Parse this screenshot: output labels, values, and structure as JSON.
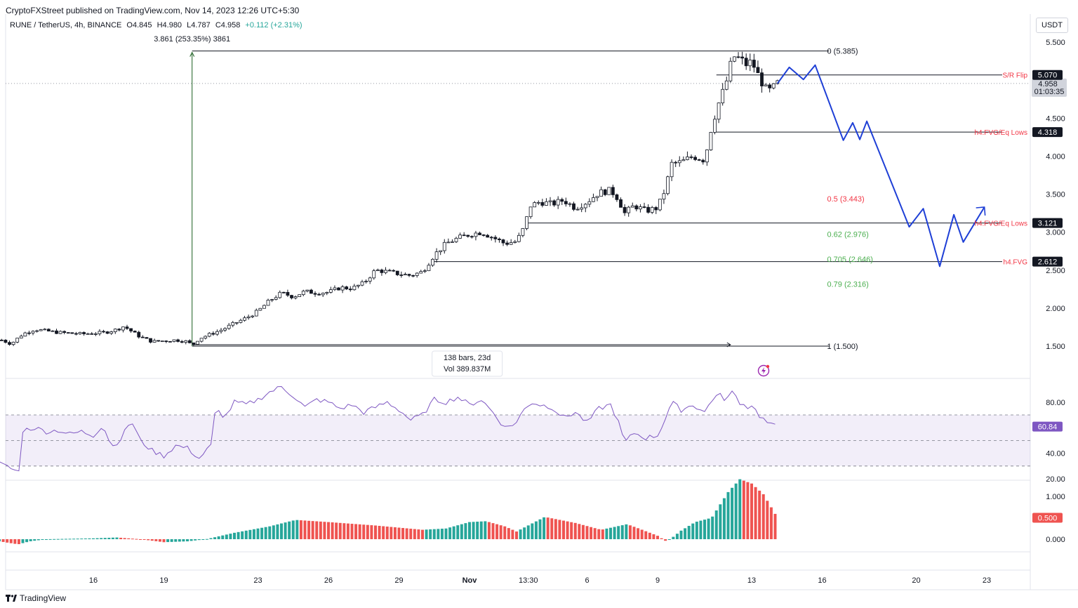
{
  "header": {
    "published": "CryptoFXStreet published on TradingView.com, Nov 14, 2023 12:26 UTC+5:30",
    "pair": "RUNE / TetherUS, 4h, BINANCE",
    "open": "O4.845",
    "high": "H4.980",
    "low": "L4.787",
    "close": "C4.958",
    "change": "+0.112 (+2.31%)"
  },
  "currency": "USDT",
  "footer": {
    "brand": "TradingView"
  },
  "colors": {
    "up": "#26a69a",
    "down": "#ef5350",
    "rsi": "#7e57c2",
    "projection": "#1e3fd6",
    "fib_red": "#f23645",
    "fib_green": "#4caf50",
    "measure": "#1b5e20"
  },
  "measure": {
    "top_label": "3.861 (253.35%) 3861",
    "bars_label": "138 bars, 23d",
    "vol_label": "Vol 389.837M"
  },
  "fib_levels": [
    {
      "label": "0 (5.385)",
      "price": 5.385,
      "color": "#131722"
    },
    {
      "label": "0.5 (3.443)",
      "price": 3.443,
      "color": "#f23645"
    },
    {
      "label": "0.62 (2.976)",
      "price": 2.976,
      "color": "#4caf50"
    },
    {
      "label": "0.705 (2.646)",
      "price": 2.646,
      "color": "#4caf50"
    },
    {
      "label": "0.79 (2.316)",
      "price": 2.316,
      "color": "#4caf50"
    },
    {
      "label": "1 (1.500)",
      "price": 1.5,
      "color": "#131722"
    }
  ],
  "levels": [
    {
      "label": "S/R Flip",
      "price": 5.07,
      "tag": "5.070"
    },
    {
      "label": "h4.FVG/Eq Lows",
      "price": 4.318,
      "tag": "4.318"
    },
    {
      "label": "h4.FVG/Eq Lows",
      "price": 3.121,
      "tag": "3.121"
    },
    {
      "label": "h4.FVG",
      "price": 2.612,
      "tag": "2.612"
    }
  ],
  "current_price": {
    "value": "4.958",
    "countdown": "01:03:35"
  },
  "price_axis": {
    "ticks": [
      {
        "v": 5.5,
        "label": "5.500"
      },
      {
        "v": 4.5,
        "label": "4.500"
      },
      {
        "v": 4.0,
        "label": "4.000"
      },
      {
        "v": 3.5,
        "label": "3.500"
      },
      {
        "v": 3.0,
        "label": "3.000"
      },
      {
        "v": 2.5,
        "label": "2.500"
      },
      {
        "v": 2.0,
        "label": "2.000"
      },
      {
        "v": 1.5,
        "label": "1.500"
      }
    ]
  },
  "rsi_panel": {
    "ticks": [
      {
        "v": 80,
        "label": "80.00"
      },
      {
        "v": 40,
        "label": "40.00"
      },
      {
        "v": 20,
        "label": "20.00"
      }
    ],
    "upper": 70,
    "mid": 50,
    "lower": 30,
    "current": "60.84"
  },
  "osc_panel": {
    "ticks": [
      {
        "v": 1,
        "label": "1.000"
      },
      {
        "v": 0,
        "label": "0.000"
      }
    ],
    "current": "0.500"
  },
  "time_axis": [
    {
      "label": "16",
      "x": 16
    },
    {
      "label": "19",
      "x": 19
    },
    {
      "label": "23",
      "x": 23
    },
    {
      "label": "26",
      "x": 26
    },
    {
      "label": "29",
      "x": 29
    },
    {
      "label": "Nov",
      "x": 32
    },
    {
      "label": "13:30",
      "x": 34.5
    },
    {
      "label": "6",
      "x": 37
    },
    {
      "label": "9",
      "x": 40
    },
    {
      "label": "13",
      "x": 44
    },
    {
      "label": "16",
      "x": 47
    },
    {
      "label": "20",
      "x": 51
    },
    {
      "label": "23",
      "x": 54
    }
  ],
  "chart_data": [
    {
      "type": "candlestick",
      "title": "RUNE / TetherUS, 4h, BINANCE",
      "x_unit": "day (Oct 1 = 1, Nov 1 = 32)",
      "ylim": [
        1.25,
        5.75
      ],
      "price_anchors": [
        [
          12.1,
          1.58
        ],
        [
          12.5,
          1.53
        ],
        [
          13.0,
          1.66
        ],
        [
          13.5,
          1.72
        ],
        [
          14.0,
          1.7
        ],
        [
          14.5,
          1.68
        ],
        [
          15.0,
          1.67
        ],
        [
          15.5,
          1.66
        ],
        [
          16.0,
          1.67
        ],
        [
          16.5,
          1.68
        ],
        [
          17.0,
          1.72
        ],
        [
          17.3,
          1.76
        ],
        [
          17.6,
          1.7
        ],
        [
          18.0,
          1.62
        ],
        [
          18.5,
          1.56
        ],
        [
          19.0,
          1.57
        ],
        [
          19.5,
          1.58
        ],
        [
          20.0,
          1.56
        ],
        [
          20.2,
          1.51
        ],
        [
          20.5,
          1.6
        ],
        [
          21.0,
          1.66
        ],
        [
          21.5,
          1.72
        ],
        [
          22.0,
          1.8
        ],
        [
          22.5,
          1.87
        ],
        [
          23.0,
          1.96
        ],
        [
          23.5,
          2.1
        ],
        [
          24.0,
          2.2
        ],
        [
          24.5,
          2.15
        ],
        [
          25.0,
          2.22
        ],
        [
          25.5,
          2.2
        ],
        [
          26.0,
          2.21
        ],
        [
          26.5,
          2.27
        ],
        [
          27.0,
          2.26
        ],
        [
          27.5,
          2.33
        ],
        [
          28.0,
          2.5
        ],
        [
          28.5,
          2.48
        ],
        [
          29.0,
          2.45
        ],
        [
          29.5,
          2.43
        ],
        [
          30.0,
          2.48
        ],
        [
          30.5,
          2.7
        ],
        [
          31.0,
          2.85
        ],
        [
          31.5,
          2.92
        ],
        [
          32.0,
          2.97
        ],
        [
          32.5,
          3.0
        ],
        [
          33.0,
          2.93
        ],
        [
          33.5,
          2.85
        ],
        [
          34.0,
          2.88
        ],
        [
          34.3,
          3.05
        ],
        [
          34.6,
          3.35
        ],
        [
          35.0,
          3.4
        ],
        [
          35.5,
          3.37
        ],
        [
          36.0,
          3.42
        ],
        [
          36.5,
          3.32
        ],
        [
          37.0,
          3.4
        ],
        [
          37.5,
          3.52
        ],
        [
          38.0,
          3.55
        ],
        [
          38.3,
          3.45
        ],
        [
          38.6,
          3.25
        ],
        [
          39.0,
          3.35
        ],
        [
          39.5,
          3.28
        ],
        [
          40.0,
          3.32
        ],
        [
          40.3,
          3.55
        ],
        [
          40.6,
          3.9
        ],
        [
          41.0,
          3.92
        ],
        [
          41.5,
          4.0
        ],
        [
          42.0,
          3.95
        ],
        [
          42.3,
          4.4
        ],
        [
          42.6,
          4.7
        ],
        [
          42.9,
          4.95
        ],
        [
          43.2,
          5.32
        ],
        [
          43.5,
          5.28
        ],
        [
          43.8,
          5.2
        ],
        [
          44.0,
          5.25
        ],
        [
          44.3,
          5.05
        ],
        [
          44.6,
          4.88
        ],
        [
          44.8,
          4.86
        ],
        [
          45.1,
          4.958
        ]
      ]
    },
    {
      "type": "line",
      "name": "projection",
      "points": [
        [
          45.1,
          4.958
        ],
        [
          45.6,
          5.17
        ],
        [
          46.2,
          5.01
        ],
        [
          46.7,
          5.2
        ],
        [
          47.9,
          4.21
        ],
        [
          48.3,
          4.44
        ],
        [
          48.6,
          4.22
        ],
        [
          48.9,
          4.46
        ],
        [
          50.7,
          3.07
        ],
        [
          51.3,
          3.31
        ],
        [
          52.0,
          2.55
        ],
        [
          52.6,
          3.23
        ],
        [
          53.0,
          2.87
        ],
        [
          53.9,
          3.33
        ]
      ]
    },
    {
      "type": "line",
      "name": "RSI",
      "ylim": [
        14,
        98
      ],
      "points": [
        [
          12.0,
          32
        ],
        [
          12.5,
          28
        ],
        [
          12.9,
          25
        ],
        [
          13.0,
          58
        ],
        [
          13.5,
          60
        ],
        [
          14.0,
          57
        ],
        [
          14.5,
          58
        ],
        [
          15.0,
          55
        ],
        [
          15.5,
          57
        ],
        [
          16.0,
          54
        ],
        [
          16.4,
          62
        ],
        [
          16.8,
          45
        ],
        [
          17.2,
          52
        ],
        [
          17.6,
          66
        ],
        [
          18.0,
          50
        ],
        [
          18.5,
          42
        ],
        [
          19.0,
          38
        ],
        [
          19.5,
          46
        ],
        [
          20.0,
          44
        ],
        [
          20.5,
          36
        ],
        [
          21.0,
          46
        ],
        [
          21.2,
          75
        ],
        [
          21.6,
          68
        ],
        [
          22.0,
          80
        ],
        [
          22.5,
          78
        ],
        [
          23.0,
          82
        ],
        [
          23.5,
          88
        ],
        [
          24.0,
          92
        ],
        [
          24.5,
          85
        ],
        [
          25.0,
          76
        ],
        [
          25.5,
          82
        ],
        [
          26.0,
          80
        ],
        [
          26.5,
          75
        ],
        [
          27.0,
          78
        ],
        [
          27.5,
          72
        ],
        [
          28.0,
          76
        ],
        [
          28.5,
          80
        ],
        [
          29.0,
          74
        ],
        [
          29.5,
          66
        ],
        [
          30.0,
          70
        ],
        [
          30.5,
          82
        ],
        [
          31.0,
          80
        ],
        [
          31.5,
          84
        ],
        [
          32.0,
          78
        ],
        [
          32.5,
          82
        ],
        [
          33.0,
          72
        ],
        [
          33.5,
          60
        ],
        [
          34.0,
          64
        ],
        [
          34.3,
          74
        ],
        [
          34.6,
          80
        ],
        [
          35.0,
          78
        ],
        [
          35.5,
          76
        ],
        [
          36.0,
          68
        ],
        [
          36.5,
          72
        ],
        [
          37.0,
          64
        ],
        [
          37.5,
          75
        ],
        [
          38.0,
          78
        ],
        [
          38.3,
          66
        ],
        [
          38.6,
          48
        ],
        [
          39.0,
          56
        ],
        [
          39.5,
          52
        ],
        [
          40.0,
          54
        ],
        [
          40.3,
          66
        ],
        [
          40.6,
          80
        ],
        [
          41.0,
          74
        ],
        [
          41.5,
          78
        ],
        [
          42.0,
          72
        ],
        [
          42.3,
          82
        ],
        [
          42.6,
          86
        ],
        [
          42.9,
          82
        ],
        [
          43.2,
          88
        ],
        [
          43.5,
          80
        ],
        [
          43.8,
          76
        ],
        [
          44.0,
          78
        ],
        [
          44.3,
          70
        ],
        [
          44.6,
          65
        ],
        [
          44.8,
          62
        ],
        [
          45.1,
          60.84
        ]
      ]
    },
    {
      "type": "bar",
      "name": "oscillator",
      "ylim": [
        -0.3,
        1.4
      ],
      "anchors": [
        [
          12.0,
          -0.05
        ],
        [
          12.8,
          -0.12
        ],
        [
          13.3,
          -0.05
        ],
        [
          14.0,
          0.0
        ],
        [
          16.0,
          0.02
        ],
        [
          17.0,
          0.04
        ],
        [
          18.0,
          0.0
        ],
        [
          19.0,
          -0.07
        ],
        [
          20.0,
          -0.05
        ],
        [
          20.8,
          0.0
        ],
        [
          22.0,
          0.15
        ],
        [
          23.5,
          0.3
        ],
        [
          24.6,
          0.45
        ],
        [
          26.0,
          0.4
        ],
        [
          28.0,
          0.32
        ],
        [
          30.0,
          0.22
        ],
        [
          31.0,
          0.25
        ],
        [
          32.0,
          0.4
        ],
        [
          32.7,
          0.42
        ],
        [
          33.5,
          0.3
        ],
        [
          34.0,
          0.18
        ],
        [
          35.2,
          0.52
        ],
        [
          36.5,
          0.38
        ],
        [
          37.6,
          0.22
        ],
        [
          38.7,
          0.35
        ],
        [
          39.2,
          0.25
        ],
        [
          40.0,
          0.08
        ],
        [
          40.4,
          -0.06
        ],
        [
          41.0,
          0.2
        ],
        [
          41.6,
          0.4
        ],
        [
          42.3,
          0.5
        ],
        [
          43.0,
          1.1
        ],
        [
          43.5,
          1.4
        ],
        [
          44.0,
          1.3
        ],
        [
          44.5,
          1.05
        ],
        [
          45.1,
          0.5
        ]
      ]
    }
  ]
}
